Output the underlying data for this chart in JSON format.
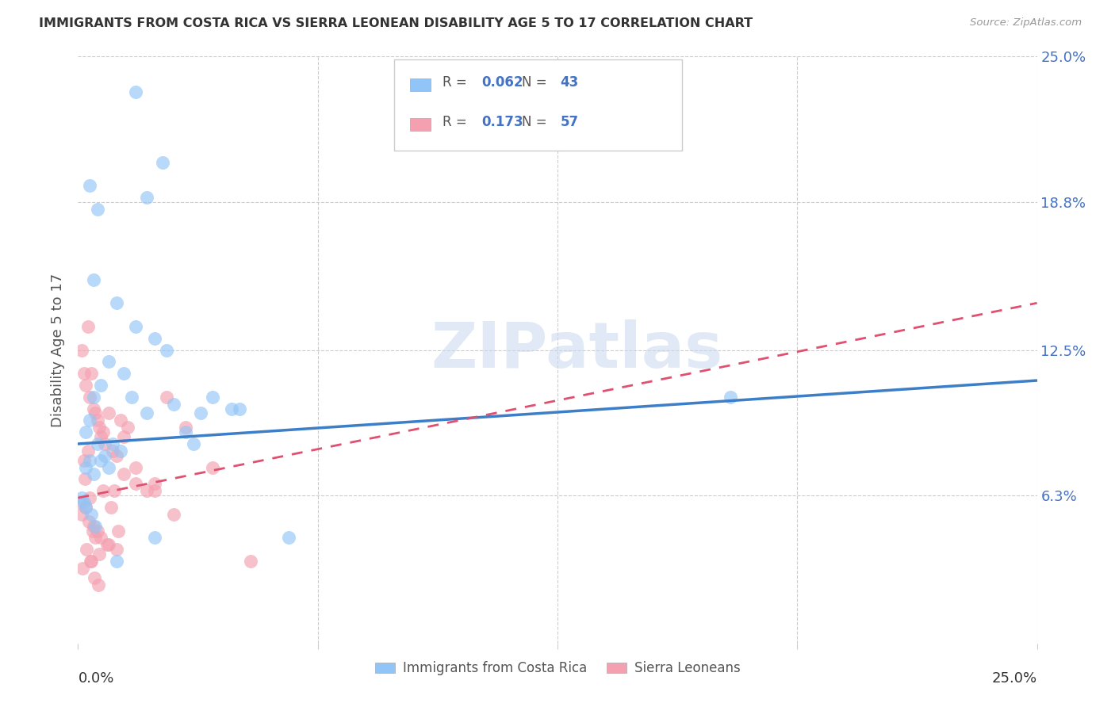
{
  "title": "IMMIGRANTS FROM COSTA RICA VS SIERRA LEONEAN DISABILITY AGE 5 TO 17 CORRELATION CHART",
  "source": "Source: ZipAtlas.com",
  "ylabel": "Disability Age 5 to 17",
  "ytick_values": [
    6.3,
    12.5,
    18.8,
    25.0
  ],
  "xlim": [
    0.0,
    25.0
  ],
  "ylim": [
    0.0,
    25.0
  ],
  "legend_label1": "Immigrants from Costa Rica",
  "legend_label2": "Sierra Leoneans",
  "R1": "0.062",
  "N1": "43",
  "R2": "0.173",
  "N2": "57",
  "color_blue": "#92c5f7",
  "color_pink": "#f4a0b0",
  "color_blue_line": "#3c7ec8",
  "color_pink_line": "#e05070",
  "costa_rica_x": [
    1.5,
    2.2,
    1.8,
    0.3,
    0.5,
    0.4,
    1.0,
    1.5,
    2.0,
    2.3,
    0.8,
    1.2,
    0.6,
    0.4,
    0.3,
    0.2,
    0.5,
    0.7,
    0.3,
    0.2,
    0.4,
    3.5,
    4.0,
    4.2,
    3.0,
    2.8,
    0.9,
    1.1,
    0.6,
    0.8,
    1.4,
    1.8,
    2.5,
    3.2,
    5.5,
    17.0,
    0.1,
    0.15,
    0.2,
    0.35,
    0.45,
    2.0,
    1.0
  ],
  "costa_rica_y": [
    23.5,
    20.5,
    19.0,
    19.5,
    18.5,
    15.5,
    14.5,
    13.5,
    13.0,
    12.5,
    12.0,
    11.5,
    11.0,
    10.5,
    9.5,
    9.0,
    8.5,
    8.0,
    7.8,
    7.5,
    7.2,
    10.5,
    10.0,
    10.0,
    8.5,
    9.0,
    8.5,
    8.2,
    7.8,
    7.5,
    10.5,
    9.8,
    10.2,
    9.8,
    4.5,
    10.5,
    6.2,
    6.0,
    5.8,
    5.5,
    5.0,
    4.5,
    3.5
  ],
  "sierra_leone_x": [
    0.1,
    0.15,
    0.2,
    0.25,
    0.3,
    0.35,
    0.4,
    0.45,
    0.5,
    0.55,
    0.6,
    0.65,
    0.7,
    0.8,
    0.9,
    1.0,
    1.1,
    1.2,
    1.3,
    1.5,
    1.8,
    2.0,
    2.3,
    2.8,
    3.5,
    4.5,
    0.05,
    0.1,
    0.2,
    0.3,
    0.4,
    0.5,
    0.6,
    0.8,
    1.0,
    1.2,
    1.5,
    2.0,
    2.5,
    0.15,
    0.25,
    0.35,
    0.45,
    0.55,
    0.65,
    0.75,
    0.85,
    0.95,
    1.05,
    0.18,
    0.28,
    0.38,
    0.12,
    0.22,
    0.32,
    0.42,
    0.52
  ],
  "sierra_leone_y": [
    12.5,
    11.5,
    11.0,
    13.5,
    10.5,
    11.5,
    10.0,
    9.8,
    9.5,
    9.2,
    8.8,
    9.0,
    8.5,
    9.8,
    8.2,
    8.0,
    9.5,
    8.8,
    9.2,
    7.5,
    6.5,
    6.8,
    10.5,
    9.2,
    7.5,
    3.5,
    6.0,
    5.5,
    5.8,
    6.2,
    5.0,
    4.8,
    4.5,
    4.2,
    4.0,
    7.2,
    6.8,
    6.5,
    5.5,
    7.8,
    8.2,
    3.5,
    4.5,
    3.8,
    6.5,
    4.2,
    5.8,
    6.5,
    4.8,
    7.0,
    5.2,
    4.8,
    3.2,
    4.0,
    3.5,
    2.8,
    2.5
  ]
}
